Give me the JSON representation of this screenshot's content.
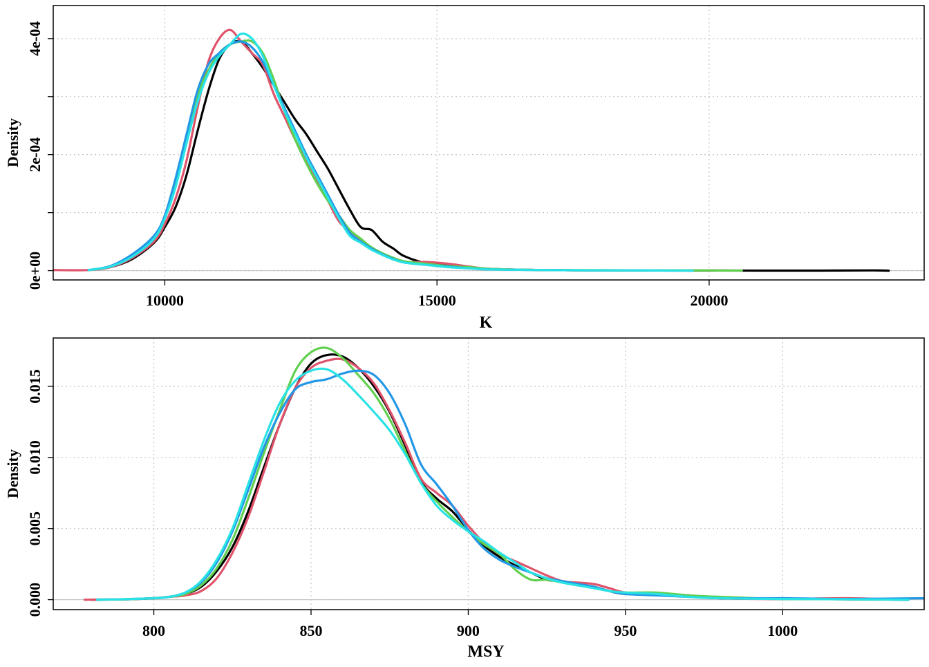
{
  "chart_data": [
    {
      "type": "line",
      "title": "",
      "xlabel": "K",
      "ylabel": "Density",
      "xlim": [
        7950,
        23950
      ],
      "ylim": [
        -1.6e-05,
        0.000457
      ],
      "x_ticks": [
        10000,
        15000,
        20000
      ],
      "x_tick_labels": [
        "10000",
        "15000",
        "20000"
      ],
      "y_ticks": [
        0,
        0.0002,
        0.0004
      ],
      "y_tick_labels": [
        "0e+00",
        "2e-04",
        "4e-04"
      ],
      "grid": true,
      "grid_x": [
        10000,
        15000,
        20000
      ],
      "grid_y": [
        0,
        0.0001,
        0.0002,
        0.0003,
        0.0004
      ],
      "legend": "none",
      "series": [
        {
          "color": "#000000",
          "x": [
            8600,
            9000,
            9400,
            9800,
            10000,
            10200,
            10400,
            10600,
            10800,
            11000,
            11200,
            11400,
            11600,
            11800,
            12000,
            12200,
            12400,
            12600,
            12800,
            13000,
            13200,
            13400,
            13600,
            13800,
            14000,
            14200,
            14400,
            14800,
            15200,
            15600,
            16000,
            17000,
            18000,
            19000,
            20000,
            21000,
            22000,
            23000,
            23300
          ],
          "y": [
            1e-06,
            6e-06,
            2e-05,
            4.8e-05,
            7.5e-05,
            0.00011,
            0.000165,
            0.00024,
            0.00031,
            0.000365,
            0.00039,
            0.000395,
            0.000375,
            0.00035,
            0.00032,
            0.00029,
            0.00026,
            0.000235,
            0.000205,
            0.000175,
            0.00014,
            0.000105,
            7.5e-05,
            7e-05,
            5e-05,
            3.8e-05,
            2.5e-05,
            1.3e-05,
            1e-05,
            6e-06,
            3e-06,
            1e-06,
            5e-07,
            3e-07,
            2e-07,
            1e-07,
            1e-07,
            5e-07,
            0
          ]
        },
        {
          "color": "#DF536B",
          "x": [
            7950,
            8600,
            9000,
            9400,
            9800,
            10000,
            10200,
            10400,
            10600,
            10800,
            11000,
            11200,
            11400,
            11600,
            11800,
            12000,
            12200,
            12400,
            12600,
            12800,
            13000,
            13200,
            13400,
            13600,
            13800,
            14000,
            14200,
            14400,
            14800,
            15200,
            15600,
            16000,
            17000,
            18000,
            19000,
            19700
          ],
          "y": [
            1e-06,
            1e-06,
            6e-06,
            2.2e-05,
            5e-05,
            8e-05,
            0.000125,
            0.00019,
            0.00028,
            0.00036,
            0.0004,
            0.000415,
            0.000395,
            0.000375,
            0.000355,
            0.000305,
            0.000265,
            0.000225,
            0.00019,
            0.000155,
            0.00012,
            8.5e-05,
            6.8e-05,
            5.2e-05,
            3.8e-05,
            2.8e-05,
            2e-05,
            1.5e-05,
            1.5e-05,
            1.2e-05,
            7e-06,
            3e-06,
            1e-06,
            5e-07,
            3e-07,
            0
          ]
        },
        {
          "color": "#61D04F",
          "x": [
            8600,
            9000,
            9400,
            9800,
            10000,
            10200,
            10400,
            10600,
            10800,
            11000,
            11200,
            11400,
            11600,
            11800,
            12000,
            12200,
            12400,
            12600,
            12800,
            13000,
            13200,
            13400,
            13600,
            13800,
            14000,
            14200,
            14400,
            14800,
            15200,
            15600,
            16000,
            17000,
            18000,
            19000,
            20000,
            20600
          ],
          "y": [
            1e-06,
            7e-06,
            2.5e-05,
            5.5e-05,
            9e-05,
            0.00015,
            0.00022,
            0.0003,
            0.000345,
            0.000375,
            0.00039,
            0.000395,
            0.000395,
            0.000375,
            0.00033,
            0.000275,
            0.000225,
            0.000185,
            0.00015,
            0.00012,
            9.5e-05,
            7e-05,
            5.5e-05,
            4e-05,
            3e-05,
            2.2e-05,
            1.6e-05,
            1.2e-05,
            8e-06,
            6e-06,
            3e-06,
            1e-06,
            8e-07,
            5e-07,
            3e-07,
            0
          ]
        },
        {
          "color": "#2297E6",
          "x": [
            8600,
            9000,
            9400,
            9800,
            10000,
            10200,
            10400,
            10600,
            10800,
            11000,
            11200,
            11400,
            11600,
            11800,
            12000,
            12200,
            12400,
            12600,
            12800,
            13000,
            13200,
            13400,
            13600,
            13800,
            14000,
            14200,
            14400,
            14800,
            15200,
            15600,
            16000,
            17000,
            18000,
            19000,
            19400
          ],
          "y": [
            1e-06,
            8e-06,
            2.8e-05,
            6e-05,
            9.5e-05,
            0.00016,
            0.000235,
            0.00031,
            0.000355,
            0.000375,
            0.00039,
            0.000395,
            0.000385,
            0.00036,
            0.00032,
            0.00028,
            0.00024,
            0.0002,
            0.000165,
            0.00013,
            9.5e-05,
            6.5e-05,
            5e-05,
            3.8e-05,
            2.8e-05,
            2e-05,
            1.4e-05,
            1e-05,
            7e-06,
            4e-06,
            2e-06,
            1e-06,
            5e-07,
            3e-07,
            0
          ]
        },
        {
          "color": "#28E2E5",
          "x": [
            8600,
            9000,
            9400,
            9800,
            10000,
            10200,
            10400,
            10600,
            10800,
            11000,
            11200,
            11400,
            11600,
            11800,
            12000,
            12200,
            12400,
            12600,
            12800,
            13000,
            13200,
            13400,
            13600,
            13800,
            14000,
            14200,
            14400,
            14800,
            15200,
            15600,
            16000,
            17000,
            18000,
            19000,
            19700
          ],
          "y": [
            1e-06,
            7e-06,
            2.4e-05,
            5.5e-05,
            9e-05,
            0.000145,
            0.00022,
            0.00029,
            0.00034,
            0.00037,
            0.00039,
            0.000408,
            0.0004,
            0.00037,
            0.00032,
            0.000275,
            0.000235,
            0.000195,
            0.00016,
            0.000125,
            9e-05,
            6e-05,
            4.8e-05,
            3.6e-05,
            2.7e-05,
            1.9e-05,
            1.4e-05,
            1e-05,
            6e-06,
            4e-06,
            2e-06,
            1e-06,
            5e-07,
            3e-07,
            0
          ]
        }
      ]
    },
    {
      "type": "line",
      "title": "",
      "xlabel": "MSY",
      "ylabel": "Density",
      "xlim": [
        768,
        1045
      ],
      "ylim": [
        -0.0007,
        0.0184
      ],
      "x_ticks": [
        800,
        850,
        900,
        950,
        1000
      ],
      "x_tick_labels": [
        "800",
        "850",
        "900",
        "950",
        "1000"
      ],
      "y_ticks": [
        0,
        0.005,
        0.01,
        0.015
      ],
      "y_tick_labels": [
        "0.000",
        "0.005",
        "0.010",
        "0.015"
      ],
      "grid": true,
      "grid_x": [
        800,
        850,
        900,
        950,
        1000
      ],
      "grid_y": [
        0,
        0.005,
        0.01,
        0.015
      ],
      "legend": "none",
      "series": [
        {
          "color": "#000000",
          "x": [
            780,
            790,
            800,
            805,
            810,
            815,
            820,
            825,
            830,
            835,
            840,
            845,
            850,
            855,
            860,
            865,
            870,
            875,
            880,
            885,
            890,
            895,
            900,
            905,
            910,
            915,
            920,
            925,
            930,
            935,
            940,
            945,
            950,
            960,
            970,
            980,
            1000,
            1020,
            1040
          ],
          "y": [
            0,
            2e-05,
            0.0001,
            0.0002,
            0.0004,
            0.0009,
            0.002,
            0.0037,
            0.0062,
            0.0093,
            0.0123,
            0.0149,
            0.0166,
            0.0172,
            0.0171,
            0.0163,
            0.015,
            0.0132,
            0.0108,
            0.0083,
            0.0071,
            0.0062,
            0.0049,
            0.0038,
            0.003,
            0.0024,
            0.0019,
            0.0014,
            0.0013,
            0.0011,
            0.0009,
            0.0006,
            0.0004,
            0.00045,
            0.0003,
            0.0001,
            5e-05,
            3e-05,
            0
          ]
        },
        {
          "color": "#DF536B",
          "x": [
            778,
            790,
            800,
            805,
            810,
            815,
            820,
            825,
            830,
            835,
            840,
            845,
            850,
            855,
            860,
            865,
            870,
            875,
            880,
            885,
            890,
            895,
            900,
            905,
            910,
            915,
            920,
            925,
            930,
            935,
            940,
            945,
            950,
            960,
            970,
            980,
            1000,
            1020,
            1040
          ],
          "y": [
            0,
            2e-05,
            0.0001,
            0.0002,
            0.0003,
            0.0006,
            0.0015,
            0.0033,
            0.0058,
            0.009,
            0.0123,
            0.0149,
            0.0163,
            0.0168,
            0.0169,
            0.0163,
            0.0152,
            0.0133,
            0.011,
            0.0085,
            0.0075,
            0.0066,
            0.0052,
            0.004,
            0.0032,
            0.0027,
            0.0022,
            0.0017,
            0.0013,
            0.0012,
            0.0011,
            0.0008,
            0.0005,
            0.0004,
            0.0003,
            0.0001,
            5e-05,
            0.0001,
            0
          ]
        },
        {
          "color": "#61D04F",
          "x": [
            782,
            790,
            800,
            805,
            810,
            815,
            820,
            825,
            830,
            835,
            840,
            845,
            850,
            855,
            860,
            865,
            870,
            875,
            880,
            885,
            890,
            895,
            900,
            905,
            910,
            915,
            920,
            925,
            930,
            935,
            940,
            945,
            950,
            960,
            970,
            980,
            1000,
            1020,
            1040
          ],
          "y": [
            0,
            2e-05,
            0.0001,
            0.0002,
            0.0004,
            0.001,
            0.0022,
            0.0042,
            0.0071,
            0.0103,
            0.0133,
            0.0161,
            0.0174,
            0.0177,
            0.017,
            0.0158,
            0.0145,
            0.0127,
            0.0104,
            0.0082,
            0.0069,
            0.0058,
            0.0048,
            0.0039,
            0.0032,
            0.0021,
            0.0014,
            0.0014,
            0.0012,
            0.001,
            0.0009,
            0.0006,
            0.0005,
            0.0005,
            0.0003,
            0.0002,
            5e-05,
            3e-05,
            0
          ]
        },
        {
          "color": "#2297E6",
          "x": [
            782,
            790,
            800,
            805,
            810,
            815,
            820,
            825,
            830,
            835,
            840,
            845,
            850,
            855,
            860,
            865,
            870,
            875,
            880,
            885,
            890,
            895,
            900,
            905,
            910,
            915,
            920,
            925,
            930,
            935,
            940,
            945,
            950,
            960,
            970,
            980,
            1000,
            1020,
            1045
          ],
          "y": [
            0,
            3e-05,
            0.0001,
            0.0002,
            0.0005,
            0.0012,
            0.0026,
            0.0048,
            0.0077,
            0.0107,
            0.0131,
            0.0148,
            0.0153,
            0.0155,
            0.0159,
            0.0161,
            0.0158,
            0.0145,
            0.0123,
            0.0095,
            0.0081,
            0.0066,
            0.0049,
            0.0036,
            0.0028,
            0.0023,
            0.0019,
            0.0015,
            0.0013,
            0.0011,
            0.0009,
            0.0006,
            0.0004,
            0.0003,
            0.0002,
            0.0001,
            0.0001,
            5e-05,
            0.0001
          ]
        },
        {
          "color": "#28E2E5",
          "x": [
            782,
            790,
            800,
            805,
            810,
            815,
            820,
            825,
            830,
            835,
            840,
            845,
            850,
            855,
            860,
            865,
            870,
            875,
            880,
            885,
            890,
            895,
            900,
            905,
            910,
            915,
            920,
            925,
            930,
            935,
            940,
            945,
            950,
            960,
            970,
            980,
            1000,
            1020,
            1040
          ],
          "y": [
            0,
            3e-05,
            0.0001,
            0.0002,
            0.0005,
            0.0013,
            0.0028,
            0.005,
            0.0081,
            0.0112,
            0.0138,
            0.0154,
            0.0161,
            0.0162,
            0.0155,
            0.0144,
            0.0132,
            0.0119,
            0.0102,
            0.0082,
            0.0066,
            0.0056,
            0.0048,
            0.0041,
            0.0033,
            0.0026,
            0.0019,
            0.0015,
            0.0012,
            0.001,
            0.0008,
            0.0006,
            0.0005,
            0.0004,
            0.0002,
            0.0001,
            5e-05,
            3e-05,
            0
          ]
        }
      ]
    }
  ]
}
